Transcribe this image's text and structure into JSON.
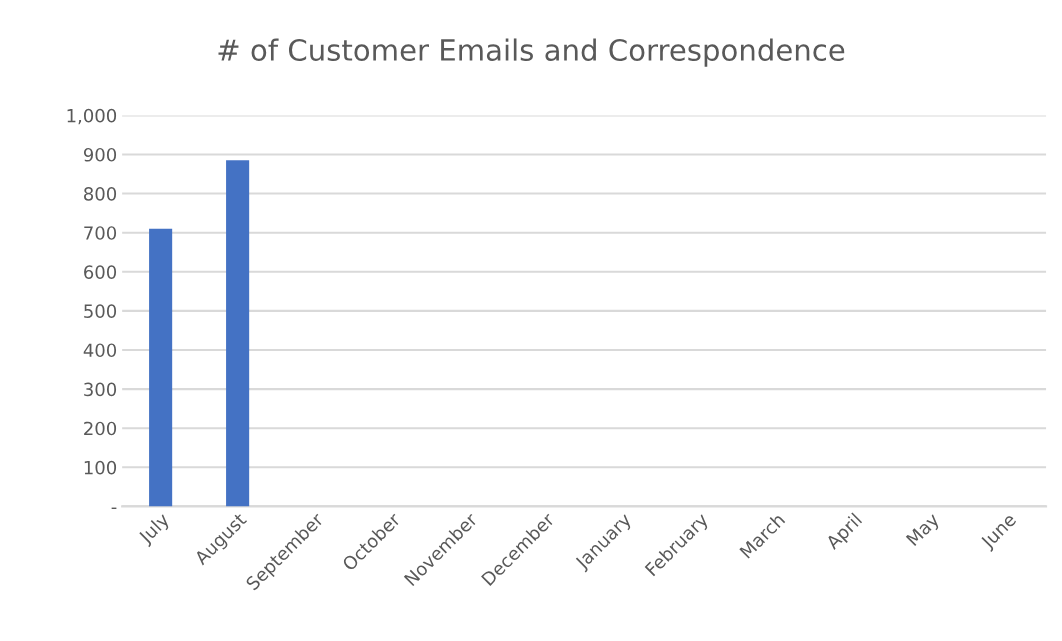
{
  "chart_data": {
    "type": "bar",
    "title": "# of Customer Emails and Correspondence",
    "categories": [
      "July",
      "August",
      "September",
      "October",
      "November",
      "December",
      "January",
      "February",
      "March",
      "April",
      "May",
      "June"
    ],
    "values": [
      710,
      885,
      null,
      null,
      null,
      null,
      null,
      null,
      null,
      null,
      null,
      null
    ],
    "color": "#4472c4",
    "ylim": [
      0,
      1000
    ],
    "yticks": [
      {
        "value": 0,
        "label": "-"
      },
      100,
      200,
      300,
      400,
      500,
      600,
      700,
      800,
      900,
      {
        "value": 1000,
        "label": "1,000"
      }
    ],
    "grid": "y"
  }
}
